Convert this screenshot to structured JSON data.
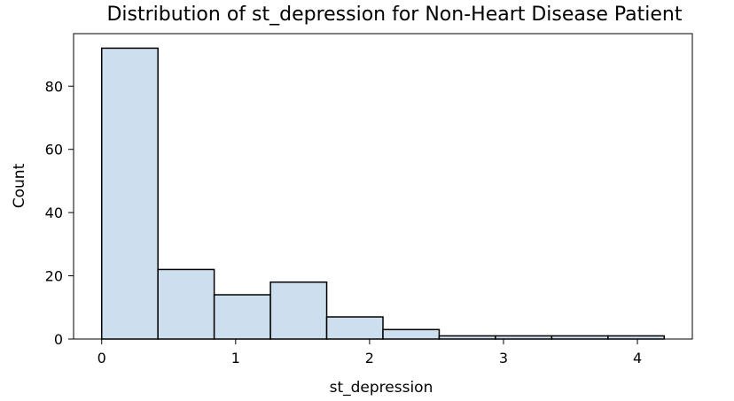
{
  "chart_data": {
    "type": "bar",
    "title": "Distribution of st_depression for Non-Heart Disease Patient",
    "xlabel": "st_depression",
    "ylabel": "Count",
    "xlim": [
      -0.21,
      4.41
    ],
    "ylim": [
      0,
      96.6
    ],
    "x_ticks": [
      0,
      1,
      2,
      3,
      4
    ],
    "y_ticks": [
      0,
      20,
      40,
      60,
      80
    ],
    "grid": false,
    "legend": "none",
    "bin_edges": [
      0,
      0.42,
      0.84,
      1.26,
      1.68,
      2.1,
      2.52,
      2.94,
      3.36,
      3.78,
      4.2
    ],
    "values": [
      92,
      22,
      14,
      18,
      7,
      3,
      1,
      1,
      1,
      1
    ],
    "colors": {
      "bar_fill": "#cddfee",
      "bar_edge": "#000000",
      "axis": "#000000"
    }
  }
}
